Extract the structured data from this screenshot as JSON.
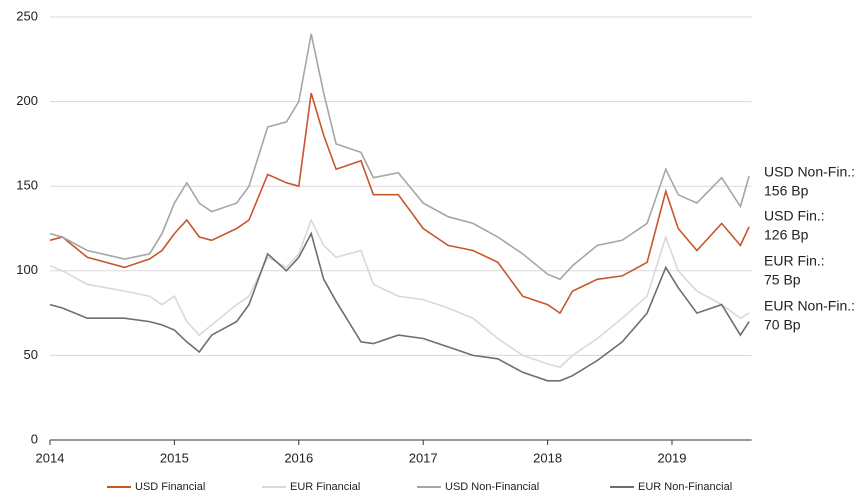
{
  "chart_data": {
    "type": "line",
    "x": [
      2014.0,
      2014.1,
      2014.3,
      2014.6,
      2014.8,
      2014.9,
      2015.0,
      2015.1,
      2015.2,
      2015.3,
      2015.5,
      2015.6,
      2015.75,
      2015.9,
      2016.0,
      2016.1,
      2016.2,
      2016.3,
      2016.5,
      2016.6,
      2016.8,
      2017.0,
      2017.2,
      2017.4,
      2017.6,
      2017.8,
      2018.0,
      2018.1,
      2018.2,
      2018.4,
      2018.6,
      2018.8,
      2018.95,
      2019.05,
      2019.2,
      2019.4,
      2019.55,
      2019.62
    ],
    "series": [
      {
        "name": "USD Financial",
        "color": "#c8562b",
        "values": [
          118,
          120,
          108,
          102,
          107,
          112,
          122,
          130,
          120,
          118,
          125,
          130,
          157,
          152,
          150,
          205,
          180,
          160,
          165,
          145,
          145,
          125,
          115,
          112,
          105,
          85,
          80,
          75,
          88,
          95,
          97,
          105,
          147,
          125,
          112,
          128,
          115,
          126
        ]
      },
      {
        "name": "EUR Financial",
        "color": "#d9d9d9",
        "values": [
          103,
          100,
          92,
          88,
          85,
          80,
          85,
          70,
          62,
          68,
          80,
          85,
          108,
          102,
          110,
          130,
          115,
          108,
          112,
          92,
          85,
          83,
          78,
          72,
          60,
          50,
          45,
          43,
          50,
          60,
          72,
          85,
          120,
          100,
          88,
          80,
          72,
          75
        ]
      },
      {
        "name": "USD Non-Financial",
        "color": "#a6a6a6",
        "values": [
          122,
          120,
          112,
          107,
          110,
          122,
          140,
          152,
          140,
          135,
          140,
          150,
          185,
          188,
          200,
          240,
          205,
          175,
          170,
          155,
          158,
          140,
          132,
          128,
          120,
          110,
          98,
          95,
          103,
          115,
          118,
          128,
          160,
          145,
          140,
          155,
          138,
          156
        ]
      },
      {
        "name": "EUR Non-Financial",
        "color": "#6e6e6e",
        "values": [
          80,
          78,
          72,
          72,
          70,
          68,
          65,
          58,
          52,
          62,
          70,
          80,
          110,
          100,
          108,
          122,
          95,
          82,
          58,
          57,
          62,
          60,
          55,
          50,
          48,
          40,
          35,
          35,
          38,
          47,
          58,
          75,
          102,
          90,
          75,
          80,
          62,
          70
        ]
      }
    ],
    "xlim": [
      2014,
      2019.64
    ],
    "xticks": [
      2014,
      2015,
      2016,
      2017,
      2018,
      2019
    ],
    "ylim": [
      0,
      250
    ],
    "yticks": [
      0,
      50,
      100,
      150,
      200,
      250
    ],
    "grid": true,
    "annotations": [
      {
        "lines": [
          "USD Non-Fin.:",
          "156 Bp"
        ],
        "color": "#a6a6a6"
      },
      {
        "lines": [
          "USD Fin.:",
          "126 Bp"
        ],
        "color": "#c8562b"
      },
      {
        "lines": [
          "EUR Fin.:",
          "75 Bp"
        ],
        "color": "#d9d9d9"
      },
      {
        "lines": [
          "EUR Non-Fin.:",
          "70 Bp"
        ],
        "color": "#6e6e6e"
      }
    ],
    "legend": "bottom"
  }
}
